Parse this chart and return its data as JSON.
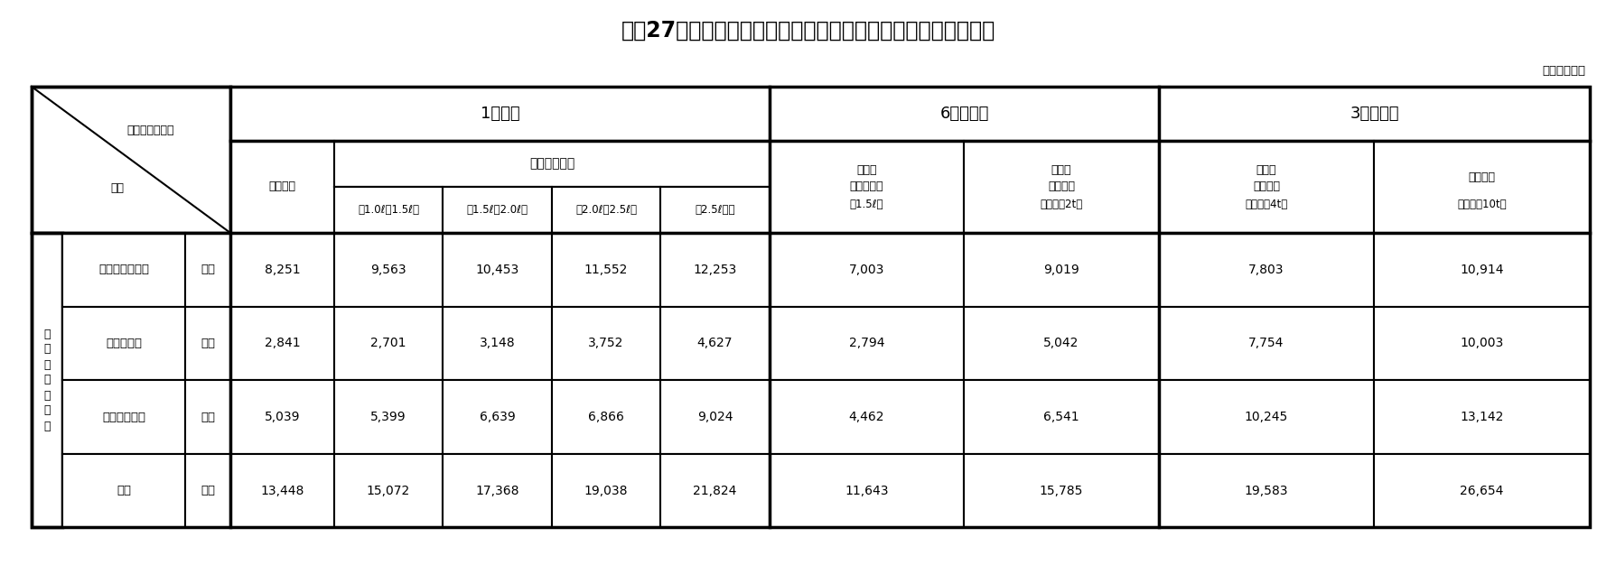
{
  "title": "平成27年度　車検以外の定期点検・整備料金実態調査【全国】",
  "unit_label": "（単位：円）",
  "col_jika_sub": [
    "（1.0ℓ～1.5ℓ）",
    "（1.5ℓ～2.0ℓ）",
    "（2.0ℓ～2.5ℓ）",
    "（2.5ℓ～）"
  ],
  "col_6mo": [
    [
      "自家用",
      "ライトバン",
      "（1.5ℓ）"
    ],
    [
      "自家用",
      "トラック",
      "（積載量2t）"
    ]
  ],
  "col_3mo": [
    [
      "営業用",
      "トラック",
      "（積載量4t）"
    ],
    [
      "トラック",
      "",
      "（積載量10t）"
    ]
  ],
  "rows": [
    {
      "label": "基本点検技術料",
      "avg": "平均",
      "values": [
        "8,251",
        "9,563",
        "10,453",
        "11,552",
        "12,253",
        "7,003",
        "9,019",
        "7,803",
        "10,914"
      ]
    },
    {
      "label": "整備技術料",
      "avg": "平均",
      "values": [
        "2,841",
        "2,701",
        "3,148",
        "3,752",
        "4,627",
        "2,794",
        "5,042",
        "7,754",
        "10,003"
      ]
    },
    {
      "label": "部品、油脂代",
      "avg": "平均",
      "values": [
        "5,039",
        "5,399",
        "6,639",
        "6,866",
        "9,024",
        "4,462",
        "6,541",
        "10,245",
        "13,142"
      ]
    },
    {
      "label": "合計",
      "avg": "平均",
      "values": [
        "13,448",
        "15,072",
        "17,368",
        "19,038",
        "21,824",
        "11,643",
        "15,785",
        "19,583",
        "26,654"
      ]
    }
  ]
}
